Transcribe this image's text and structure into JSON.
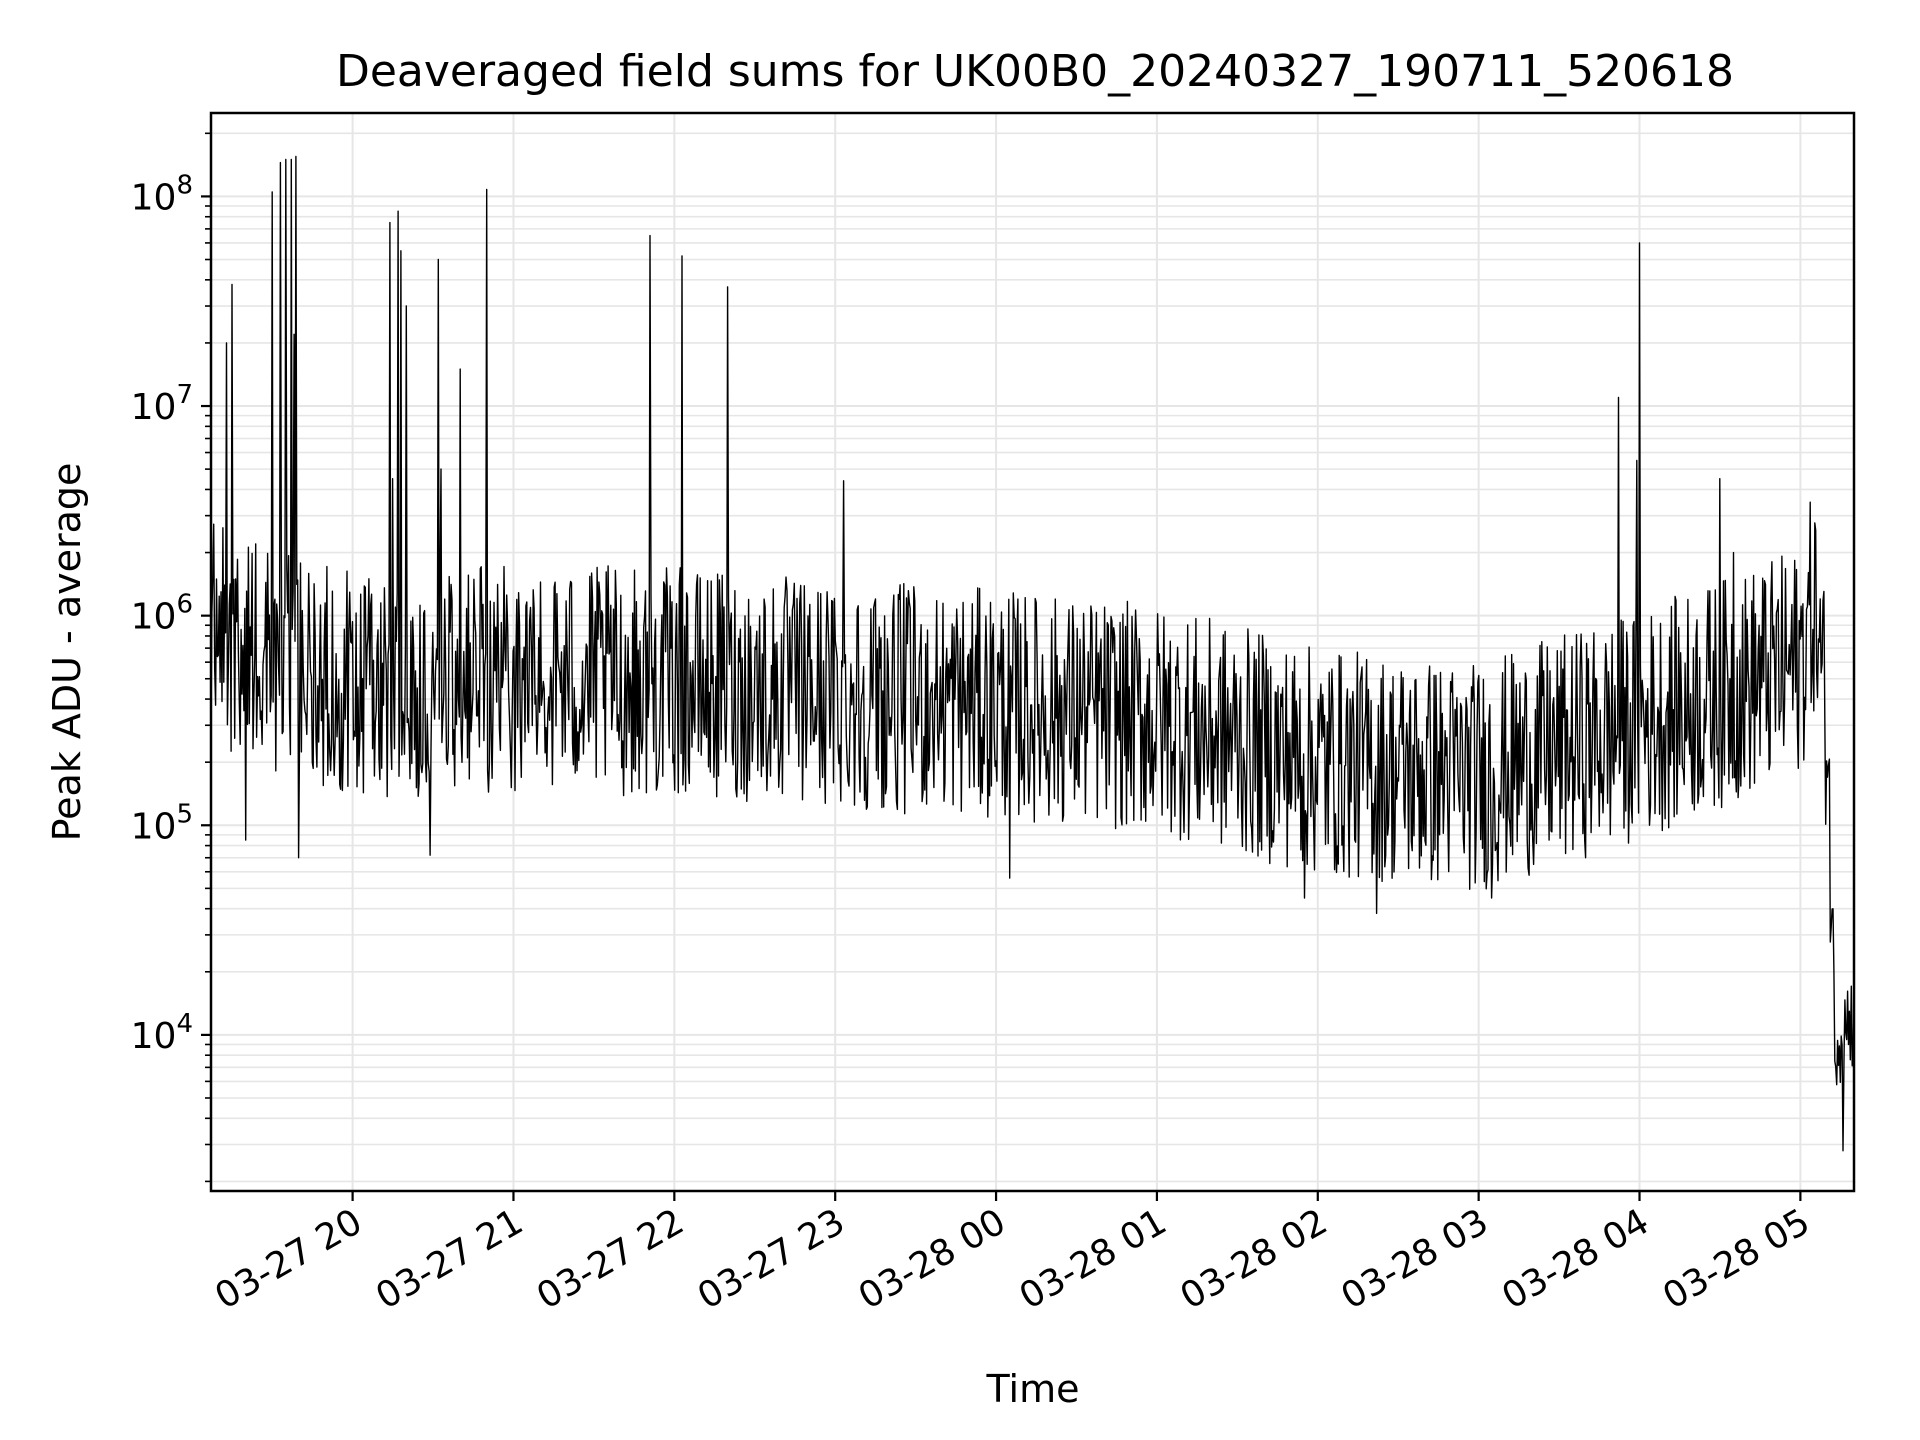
{
  "chart_data": {
    "type": "line",
    "title": "Deaveraged field sums for UK00B0_20240327_190711_520618",
    "xlabel": "Time",
    "ylabel": "Peak ADU - average",
    "x_axis": {
      "kind": "time",
      "start": "2024-03-27 19:07:11",
      "end": "2024-03-28 05:20:00",
      "ticks": [
        {
          "t": "2024-03-27 20:00",
          "label": "03-27 20"
        },
        {
          "t": "2024-03-27 21:00",
          "label": "03-27 21"
        },
        {
          "t": "2024-03-27 22:00",
          "label": "03-27 22"
        },
        {
          "t": "2024-03-27 23:00",
          "label": "03-27 23"
        },
        {
          "t": "2024-03-28 00:00",
          "label": "03-28 00"
        },
        {
          "t": "2024-03-28 01:00",
          "label": "03-28 01"
        },
        {
          "t": "2024-03-28 02:00",
          "label": "03-28 02"
        },
        {
          "t": "2024-03-28 03:00",
          "label": "03-28 03"
        },
        {
          "t": "2024-03-28 04:00",
          "label": "03-28 04"
        },
        {
          "t": "2024-03-28 05:00",
          "label": "03-28 05"
        }
      ],
      "tick_rotation_deg": 30
    },
    "y_axis": {
      "scale": "log",
      "ylim": [
        1800,
        250000000
      ],
      "major_ticks": [
        {
          "value": 10000,
          "base": "10",
          "exp": "4"
        },
        {
          "value": 100000,
          "base": "10",
          "exp": "5"
        },
        {
          "value": 1000000,
          "base": "10",
          "exp": "6"
        },
        {
          "value": 10000000,
          "base": "10",
          "exp": "7"
        },
        {
          "value": 100000000,
          "base": "10",
          "exp": "8"
        }
      ]
    },
    "grid": true,
    "grid_color": "#e6e6e6",
    "line_color": "#000000",
    "series": [
      {
        "baseline": [
          {
            "t": "2024-03-27 19:07",
            "v": 800000
          },
          {
            "t": "2024-03-27 20:00",
            "v": 450000
          },
          {
            "t": "2024-03-27 21:00",
            "v": 500000
          },
          {
            "t": "2024-03-27 22:00",
            "v": 480000
          },
          {
            "t": "2024-03-27 23:00",
            "v": 420000
          },
          {
            "t": "2024-03-28 00:00",
            "v": 380000
          },
          {
            "t": "2024-03-28 01:00",
            "v": 320000
          },
          {
            "t": "2024-03-28 02:00",
            "v": 200000
          },
          {
            "t": "2024-03-28 03:00",
            "v": 170000
          },
          {
            "t": "2024-03-28 04:00",
            "v": 300000
          },
          {
            "t": "2024-03-28 05:00",
            "v": 600000
          },
          {
            "t": "2024-03-28 05:05",
            "v": 1200000
          },
          {
            "t": "2024-03-28 05:10",
            "v": 300000
          },
          {
            "t": "2024-03-28 05:13",
            "v": 10000
          },
          {
            "t": "2024-03-28 05:20",
            "v": 12000
          }
        ],
        "noise_spread_decades": 0.55,
        "spikes": [
          {
            "t": "2024-03-27 19:11",
            "v": 1300000
          },
          {
            "t": "2024-03-27 19:13",
            "v": 20000000
          },
          {
            "t": "2024-03-27 19:15",
            "v": 38000000
          },
          {
            "t": "2024-03-27 19:24",
            "v": 2200000
          },
          {
            "t": "2024-03-27 19:30",
            "v": 105000000
          },
          {
            "t": "2024-03-27 19:33",
            "v": 145000000
          },
          {
            "t": "2024-03-27 19:35",
            "v": 150000000
          },
          {
            "t": "2024-03-27 19:37",
            "v": 150000000
          },
          {
            "t": "2024-03-27 19:38",
            "v": 22000000
          },
          {
            "t": "2024-03-27 19:39",
            "v": 155000000
          },
          {
            "t": "2024-03-27 20:14",
            "v": 75000000
          },
          {
            "t": "2024-03-27 20:15",
            "v": 4500000
          },
          {
            "t": "2024-03-27 20:17",
            "v": 85000000
          },
          {
            "t": "2024-03-27 20:18",
            "v": 55000000
          },
          {
            "t": "2024-03-27 20:20",
            "v": 30000000
          },
          {
            "t": "2024-03-27 20:32",
            "v": 50000000
          },
          {
            "t": "2024-03-27 20:33",
            "v": 5000000
          },
          {
            "t": "2024-03-27 20:40",
            "v": 15000000
          },
          {
            "t": "2024-03-27 20:50",
            "v": 108000000
          },
          {
            "t": "2024-03-27 21:51",
            "v": 65000000
          },
          {
            "t": "2024-03-27 22:03",
            "v": 52000000
          },
          {
            "t": "2024-03-27 22:20",
            "v": 37000000
          },
          {
            "t": "2024-03-27 23:03",
            "v": 4400000
          },
          {
            "t": "2024-03-28 03:52",
            "v": 11000000
          },
          {
            "t": "2024-03-28 03:59",
            "v": 5500000
          },
          {
            "t": "2024-03-28 04:00",
            "v": 60000000
          },
          {
            "t": "2024-03-28 04:30",
            "v": 4500000
          },
          {
            "t": "2024-03-28 04:35",
            "v": 2000000
          }
        ],
        "dips": [
          {
            "t": "2024-03-27 19:16",
            "v": 260000
          },
          {
            "t": "2024-03-27 19:20",
            "v": 85000
          },
          {
            "t": "2024-03-27 19:40",
            "v": 70000
          },
          {
            "t": "2024-03-27 20:29",
            "v": 72000
          },
          {
            "t": "2024-03-28 00:05",
            "v": 56000
          },
          {
            "t": "2024-03-28 01:55",
            "v": 45000
          },
          {
            "t": "2024-03-28 02:22",
            "v": 38000
          },
          {
            "t": "2024-03-28 03:05",
            "v": 45000
          },
          {
            "t": "2024-03-28 05:13",
            "v": 7500
          },
          {
            "t": "2024-03-28 05:16",
            "v": 2800
          },
          {
            "t": "2024-03-28 05:18",
            "v": 9000
          }
        ]
      }
    ]
  }
}
